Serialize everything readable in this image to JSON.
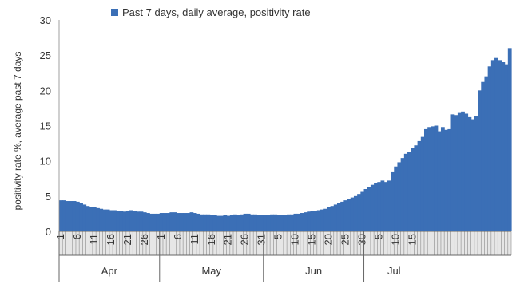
{
  "chart_data": {
    "type": "area",
    "title": "",
    "xlabel": "",
    "ylabel": "positivity rate %, average past 7 days",
    "ylim": [
      0,
      30
    ],
    "yticks": [
      0,
      5,
      10,
      15,
      20,
      25,
      30
    ],
    "grid": false,
    "legend_position": "top",
    "series": [
      {
        "name": "Past 7 days, daily average, positivity rate",
        "color": "#3b6fb6",
        "values": [
          4.4,
          4.4,
          4.3,
          4.3,
          4.3,
          4.2,
          4.0,
          3.8,
          3.6,
          3.5,
          3.4,
          3.3,
          3.2,
          3.1,
          3.1,
          3.0,
          3.0,
          2.9,
          2.9,
          2.8,
          2.9,
          3.0,
          2.9,
          2.8,
          2.8,
          2.7,
          2.6,
          2.5,
          2.5,
          2.5,
          2.6,
          2.6,
          2.6,
          2.7,
          2.7,
          2.6,
          2.6,
          2.6,
          2.6,
          2.7,
          2.6,
          2.5,
          2.4,
          2.4,
          2.4,
          2.3,
          2.3,
          2.2,
          2.2,
          2.3,
          2.2,
          2.3,
          2.4,
          2.3,
          2.4,
          2.5,
          2.5,
          2.4,
          2.4,
          2.3,
          2.3,
          2.3,
          2.3,
          2.4,
          2.4,
          2.3,
          2.3,
          2.3,
          2.4,
          2.4,
          2.5,
          2.5,
          2.6,
          2.7,
          2.8,
          2.9,
          2.9,
          3.0,
          3.1,
          3.2,
          3.4,
          3.6,
          3.8,
          4.0,
          4.2,
          4.4,
          4.6,
          4.8,
          5.0,
          5.3,
          5.6,
          6.0,
          6.3,
          6.6,
          6.8,
          7.0,
          7.2,
          7.0,
          7.2,
          8.5,
          9.2,
          9.8,
          10.4,
          11.0,
          11.3,
          11.8,
          12.2,
          12.8,
          13.4,
          14.5,
          14.8,
          14.9,
          15.0,
          14.2,
          14.8,
          14.4,
          14.5,
          16.6,
          16.5,
          16.8,
          17.0,
          16.7,
          16.2,
          15.9,
          16.3,
          20.0,
          21.2,
          22.0,
          23.4,
          24.3,
          24.6,
          24.3,
          24.0,
          23.7,
          26.0
        ]
      }
    ],
    "x_tick_labels": [
      {
        "label": "1",
        "day": 0
      },
      {
        "label": "6",
        "day": 5
      },
      {
        "label": "11",
        "day": 10
      },
      {
        "label": "16",
        "day": 15
      },
      {
        "label": "21",
        "day": 20
      },
      {
        "label": "26",
        "day": 25
      },
      {
        "label": "1",
        "day": 30
      },
      {
        "label": "6",
        "day": 35
      },
      {
        "label": "11",
        "day": 40
      },
      {
        "label": "16",
        "day": 45
      },
      {
        "label": "21",
        "day": 50
      },
      {
        "label": "26",
        "day": 55
      },
      {
        "label": "31",
        "day": 60
      },
      {
        "label": "5",
        "day": 65
      },
      {
        "label": "10",
        "day": 70
      },
      {
        "label": "15",
        "day": 75
      },
      {
        "label": "20",
        "day": 80
      },
      {
        "label": "25",
        "day": 85
      },
      {
        "label": "30",
        "day": 90
      },
      {
        "label": "5",
        "day": 95
      },
      {
        "label": "10",
        "day": 100
      },
      {
        "label": "15",
        "day": 105
      }
    ],
    "months": [
      {
        "label": "Apr",
        "start": 0,
        "end": 30
      },
      {
        "label": "May",
        "start": 30,
        "end": 61
      },
      {
        "label": "Jun",
        "start": 61,
        "end": 91
      },
      {
        "label": "Jul",
        "start": 91,
        "end": 109
      }
    ]
  }
}
